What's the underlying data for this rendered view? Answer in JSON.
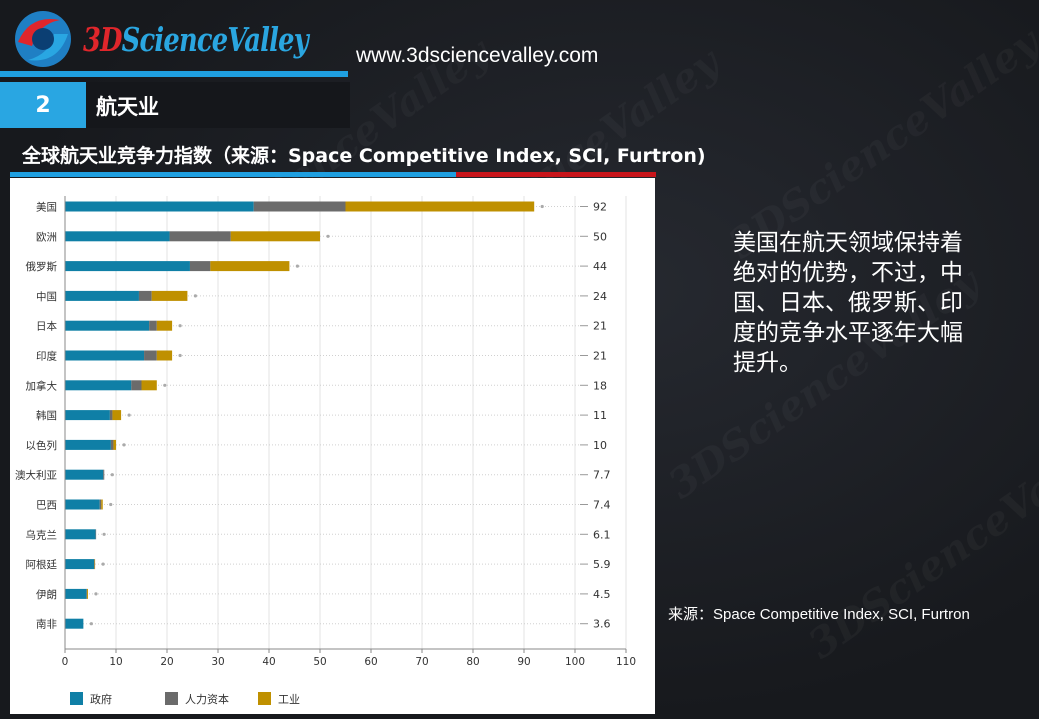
{
  "header": {
    "brand_prefix": "3D",
    "brand_name": "ScienceValley",
    "url": "www.3dsciencevalley.com"
  },
  "section": {
    "number": "2",
    "title": "航天业"
  },
  "chart_title": "全球航天业竞争力指数（来源：Space Competitive Index, SCI, Furtron)",
  "description": "美国在航天领域保持着绝对的优势，不过，中国、日本、俄罗斯、印度的竞争水平逐年大幅提升。",
  "source_note": "来源：Space Competitive Index, SCI, Furtron",
  "colors": {
    "gov": "#0f7fa6",
    "hr": "#6b6b6b",
    "ind": "#bf9000",
    "accent_blue": "#1f9fe0",
    "accent_red": "#c8151b"
  },
  "chart_data": {
    "type": "bar",
    "orientation": "horizontal",
    "stacked": true,
    "title": "全球航天业竞争力指数（来源：Space Competitive Index, SCI, Furtron)",
    "categories": [
      "美国",
      "欧洲",
      "俄罗斯",
      "中国",
      "日本",
      "印度",
      "加拿大",
      "韩国",
      "以色列",
      "澳大利亚",
      "巴西",
      "乌克兰",
      "阿根廷",
      "伊朗",
      "南非"
    ],
    "series": [
      {
        "name": "政府",
        "color": "#0f7fa6",
        "values": [
          37,
          20.5,
          24.5,
          14.5,
          16.5,
          15.5,
          13,
          8.8,
          9,
          7.5,
          6.8,
          6,
          5.7,
          4.2,
          3.6
        ]
      },
      {
        "name": "人力资本",
        "color": "#6b6b6b",
        "values": [
          18,
          12,
          4,
          2.5,
          1.5,
          2.5,
          2,
          0.5,
          0.5,
          0.2,
          0.3,
          0.1,
          0.1,
          0.1,
          0
        ]
      },
      {
        "name": "工业",
        "color": "#bf9000",
        "values": [
          37,
          17.5,
          15.5,
          7,
          3,
          3,
          3,
          1.7,
          0.5,
          0,
          0.3,
          0,
          0.1,
          0.2,
          0
        ]
      }
    ],
    "totals": [
      "92",
      "50",
      "44",
      "24",
      "21",
      "21",
      "18",
      "11",
      "10",
      "7.7",
      "7.4",
      "6.1",
      "5.9",
      "4.5",
      "3.6"
    ],
    "xlim": [
      0,
      110
    ],
    "xticks": [
      0,
      10,
      20,
      30,
      40,
      50,
      60,
      70,
      80,
      90,
      100,
      110
    ],
    "grid": true,
    "legend_position": "bottom"
  }
}
